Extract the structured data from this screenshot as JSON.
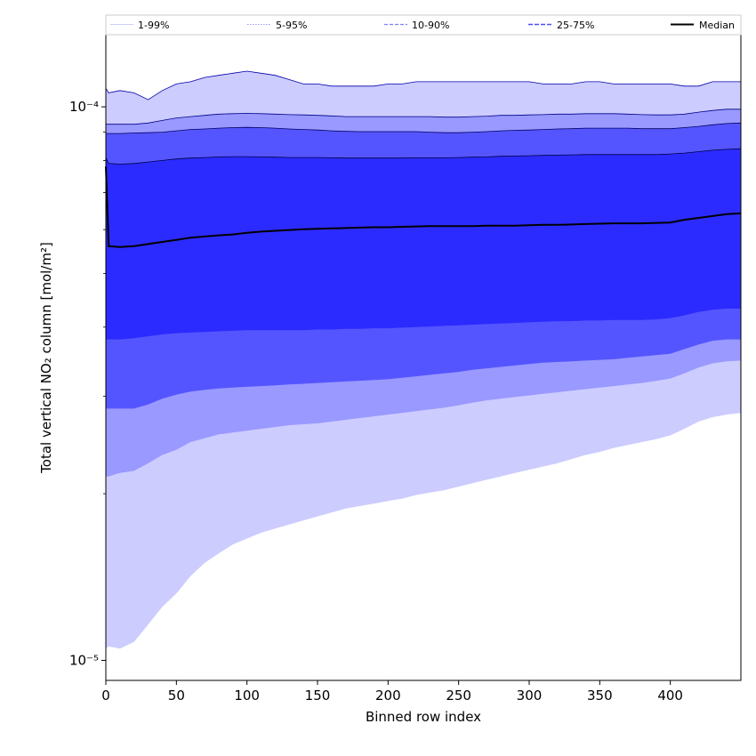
{
  "chart_data": {
    "type": "area",
    "xlabel": "Binned row index",
    "ylabel": "Total vertical NO₂ column [mol/m²]",
    "yscale": "log",
    "xlim": [
      0,
      450
    ],
    "ylim": [
      9.2e-06,
      0.000135
    ],
    "x_ticks": [
      0,
      50,
      100,
      150,
      200,
      250,
      300,
      350,
      400
    ],
    "x_tick_labels": [
      "0",
      "50",
      "100",
      "150",
      "200",
      "250",
      "300",
      "350",
      "400"
    ],
    "y_major_ticks": [
      1e-05,
      0.0001
    ],
    "y_major_tick_labels": [
      "10⁻⁵",
      "10⁻⁴"
    ],
    "y_minor_ticks": [
      2e-05,
      3e-05,
      4e-05,
      5e-05,
      6e-05,
      7e-05,
      8e-05,
      9e-05
    ],
    "x": [
      0,
      2,
      10,
      20,
      30,
      40,
      50,
      60,
      70,
      80,
      90,
      100,
      110,
      120,
      130,
      140,
      150,
      160,
      170,
      180,
      190,
      200,
      210,
      220,
      230,
      240,
      250,
      260,
      270,
      280,
      290,
      300,
      310,
      320,
      330,
      340,
      350,
      360,
      370,
      380,
      390,
      400,
      410,
      420,
      430,
      440,
      450
    ],
    "legend": {
      "placement": "top",
      "entries": [
        {
          "label": "1-99%",
          "color": "#ccccff",
          "style": "solid"
        },
        {
          "label": "5-95%",
          "color": "#9999ff",
          "style": "dotted"
        },
        {
          "label": "10-90%",
          "color": "#8080ff",
          "style": "dashed"
        },
        {
          "label": "25-75%",
          "color": "#4d4dff",
          "style": "dashed"
        },
        {
          "label": "Median",
          "color": "#000000",
          "style": "solid"
        }
      ]
    },
    "bands": [
      {
        "name": "1-99%",
        "fill": "#ccccff",
        "edge": "#0000aa",
        "upper": [
          0.000108,
          0.000106,
          0.000107,
          0.000106,
          0.000103,
          0.000107,
          0.00011,
          0.000111,
          0.000113,
          0.000114,
          0.000115,
          0.000116,
          0.000115,
          0.000114,
          0.000112,
          0.00011,
          0.00011,
          0.000109,
          0.000109,
          0.000109,
          0.000109,
          0.00011,
          0.00011,
          0.000111,
          0.000111,
          0.000111,
          0.000111,
          0.000111,
          0.000111,
          0.000111,
          0.000111,
          0.000111,
          0.00011,
          0.00011,
          0.00011,
          0.000111,
          0.000111,
          0.00011,
          0.00011,
          0.00011,
          0.00011,
          0.00011,
          0.000109,
          0.000109,
          0.000111,
          0.000111,
          0.000111
        ],
        "lower": [
          1.05e-05,
          1.06e-05,
          1.05e-05,
          1.08e-05,
          1.16e-05,
          1.25e-05,
          1.32e-05,
          1.42e-05,
          1.5e-05,
          1.56e-05,
          1.62e-05,
          1.66e-05,
          1.7e-05,
          1.73e-05,
          1.76e-05,
          1.79e-05,
          1.82e-05,
          1.85e-05,
          1.88e-05,
          1.9e-05,
          1.92e-05,
          1.94e-05,
          1.96e-05,
          1.99e-05,
          2.01e-05,
          2.03e-05,
          2.06e-05,
          2.09e-05,
          2.12e-05,
          2.15e-05,
          2.18e-05,
          2.21e-05,
          2.24e-05,
          2.27e-05,
          2.31e-05,
          2.35e-05,
          2.38e-05,
          2.42e-05,
          2.45e-05,
          2.48e-05,
          2.51e-05,
          2.55e-05,
          2.62e-05,
          2.7e-05,
          2.75e-05,
          2.78e-05,
          2.8e-05
        ]
      },
      {
        "name": "5-95%",
        "fill": "#9999ff",
        "edge": "#000088",
        "upper": [
          9.3e-05,
          9.3e-05,
          9.3e-05,
          9.3e-05,
          9.35e-05,
          9.45e-05,
          9.55e-05,
          9.6e-05,
          9.65e-05,
          9.7e-05,
          9.72e-05,
          9.73e-05,
          9.72e-05,
          9.7e-05,
          9.68e-05,
          9.67e-05,
          9.65e-05,
          9.63e-05,
          9.6e-05,
          9.6e-05,
          9.6e-05,
          9.6e-05,
          9.6e-05,
          9.6e-05,
          9.6e-05,
          9.58e-05,
          9.58e-05,
          9.6e-05,
          9.62e-05,
          9.65e-05,
          9.65e-05,
          9.67e-05,
          9.68e-05,
          9.7e-05,
          9.7e-05,
          9.72e-05,
          9.72e-05,
          9.72e-05,
          9.7e-05,
          9.68e-05,
          9.67e-05,
          9.67e-05,
          9.7e-05,
          9.78e-05,
          9.85e-05,
          9.9e-05,
          9.9e-05
        ],
        "lower": [
          2.15e-05,
          2.15e-05,
          2.18e-05,
          2.2e-05,
          2.27e-05,
          2.35e-05,
          2.4e-05,
          2.48e-05,
          2.52e-05,
          2.56e-05,
          2.58e-05,
          2.6e-05,
          2.62e-05,
          2.64e-05,
          2.66e-05,
          2.67e-05,
          2.68e-05,
          2.7e-05,
          2.72e-05,
          2.74e-05,
          2.76e-05,
          2.78e-05,
          2.8e-05,
          2.82e-05,
          2.84e-05,
          2.86e-05,
          2.89e-05,
          2.92e-05,
          2.95e-05,
          2.97e-05,
          2.99e-05,
          3.01e-05,
          3.03e-05,
          3.05e-05,
          3.07e-05,
          3.09e-05,
          3.11e-05,
          3.13e-05,
          3.15e-05,
          3.17e-05,
          3.2e-05,
          3.23e-05,
          3.3e-05,
          3.38e-05,
          3.44e-05,
          3.47e-05,
          3.48e-05
        ]
      },
      {
        "name": "10-90%",
        "fill": "#5555ff",
        "edge": "#000066",
        "upper": [
          8.95e-05,
          8.95e-05,
          8.95e-05,
          8.97e-05,
          8.98e-05,
          9e-05,
          9.05e-05,
          9.1e-05,
          9.12e-05,
          9.15e-05,
          9.17e-05,
          9.18e-05,
          9.17e-05,
          9.15e-05,
          9.12e-05,
          9.1e-05,
          9.08e-05,
          9.05e-05,
          9.03e-05,
          9.02e-05,
          9.02e-05,
          9.02e-05,
          9.02e-05,
          9.02e-05,
          9e-05,
          8.98e-05,
          8.98e-05,
          9e-05,
          9.02e-05,
          9.05e-05,
          9.07e-05,
          9.08e-05,
          9.1e-05,
          9.12e-05,
          9.13e-05,
          9.15e-05,
          9.15e-05,
          9.15e-05,
          9.15e-05,
          9.13e-05,
          9.13e-05,
          9.13e-05,
          9.17e-05,
          9.22e-05,
          9.28e-05,
          9.33e-05,
          9.35e-05
        ],
        "lower": [
          2.85e-05,
          2.85e-05,
          2.85e-05,
          2.85e-05,
          2.9e-05,
          2.97e-05,
          3.02e-05,
          3.06e-05,
          3.08e-05,
          3.1e-05,
          3.11e-05,
          3.12e-05,
          3.13e-05,
          3.14e-05,
          3.15e-05,
          3.16e-05,
          3.17e-05,
          3.18e-05,
          3.19e-05,
          3.2e-05,
          3.21e-05,
          3.22e-05,
          3.24e-05,
          3.26e-05,
          3.28e-05,
          3.3e-05,
          3.32e-05,
          3.35e-05,
          3.37e-05,
          3.39e-05,
          3.41e-05,
          3.43e-05,
          3.45e-05,
          3.46e-05,
          3.47e-05,
          3.48e-05,
          3.49e-05,
          3.5e-05,
          3.52e-05,
          3.54e-05,
          3.56e-05,
          3.58e-05,
          3.65e-05,
          3.72e-05,
          3.78e-05,
          3.8e-05,
          3.8e-05
        ]
      },
      {
        "name": "25-75%",
        "fill": "#2b2bff",
        "edge": "#000044",
        "upper": [
          8.1e-05,
          7.9e-05,
          7.88e-05,
          7.9e-05,
          7.95e-05,
          8e-05,
          8.05e-05,
          8.08e-05,
          8.1e-05,
          8.12e-05,
          8.13e-05,
          8.13e-05,
          8.12e-05,
          8.11e-05,
          8.1e-05,
          8.1e-05,
          8.1e-05,
          8.09e-05,
          8.08e-05,
          8.08e-05,
          8.08e-05,
          8.08e-05,
          8.08e-05,
          8.09e-05,
          8.09e-05,
          8.09e-05,
          8.1e-05,
          8.11e-05,
          8.12e-05,
          8.14e-05,
          8.15e-05,
          8.16e-05,
          8.17e-05,
          8.18e-05,
          8.19e-05,
          8.2e-05,
          8.2e-05,
          8.2e-05,
          8.2e-05,
          8.2e-05,
          8.2e-05,
          8.22e-05,
          8.25e-05,
          8.3e-05,
          8.35e-05,
          8.38e-05,
          8.4e-05
        ],
        "lower": [
          3.8e-05,
          3.8e-05,
          3.8e-05,
          3.82e-05,
          3.85e-05,
          3.88e-05,
          3.9e-05,
          3.91e-05,
          3.92e-05,
          3.93e-05,
          3.94e-05,
          3.95e-05,
          3.95e-05,
          3.95e-05,
          3.95e-05,
          3.95e-05,
          3.96e-05,
          3.96e-05,
          3.97e-05,
          3.97e-05,
          3.98e-05,
          3.98e-05,
          3.99e-05,
          4e-05,
          4.01e-05,
          4.02e-05,
          4.03e-05,
          4.04e-05,
          4.05e-05,
          4.06e-05,
          4.07e-05,
          4.08e-05,
          4.09e-05,
          4.1e-05,
          4.1e-05,
          4.11e-05,
          4.11e-05,
          4.12e-05,
          4.12e-05,
          4.12e-05,
          4.13e-05,
          4.15e-05,
          4.2e-05,
          4.26e-05,
          4.3e-05,
          4.32e-05,
          4.32e-05
        ]
      }
    ],
    "median": {
      "name": "Median",
      "color": "#000000",
      "values": [
        7.8e-05,
        5.6e-05,
        5.58e-05,
        5.6e-05,
        5.65e-05,
        5.7e-05,
        5.75e-05,
        5.8e-05,
        5.83e-05,
        5.86e-05,
        5.88e-05,
        5.92e-05,
        5.95e-05,
        5.97e-05,
        5.99e-05,
        6.01e-05,
        6.02e-05,
        6.03e-05,
        6.04e-05,
        6.05e-05,
        6.06e-05,
        6.06e-05,
        6.07e-05,
        6.08e-05,
        6.09e-05,
        6.09e-05,
        6.09e-05,
        6.09e-05,
        6.1e-05,
        6.1e-05,
        6.1e-05,
        6.11e-05,
        6.12e-05,
        6.12e-05,
        6.13e-05,
        6.14e-05,
        6.15e-05,
        6.16e-05,
        6.16e-05,
        6.16e-05,
        6.17e-05,
        6.18e-05,
        6.25e-05,
        6.3e-05,
        6.35e-05,
        6.4e-05,
        6.42e-05
      ]
    }
  }
}
